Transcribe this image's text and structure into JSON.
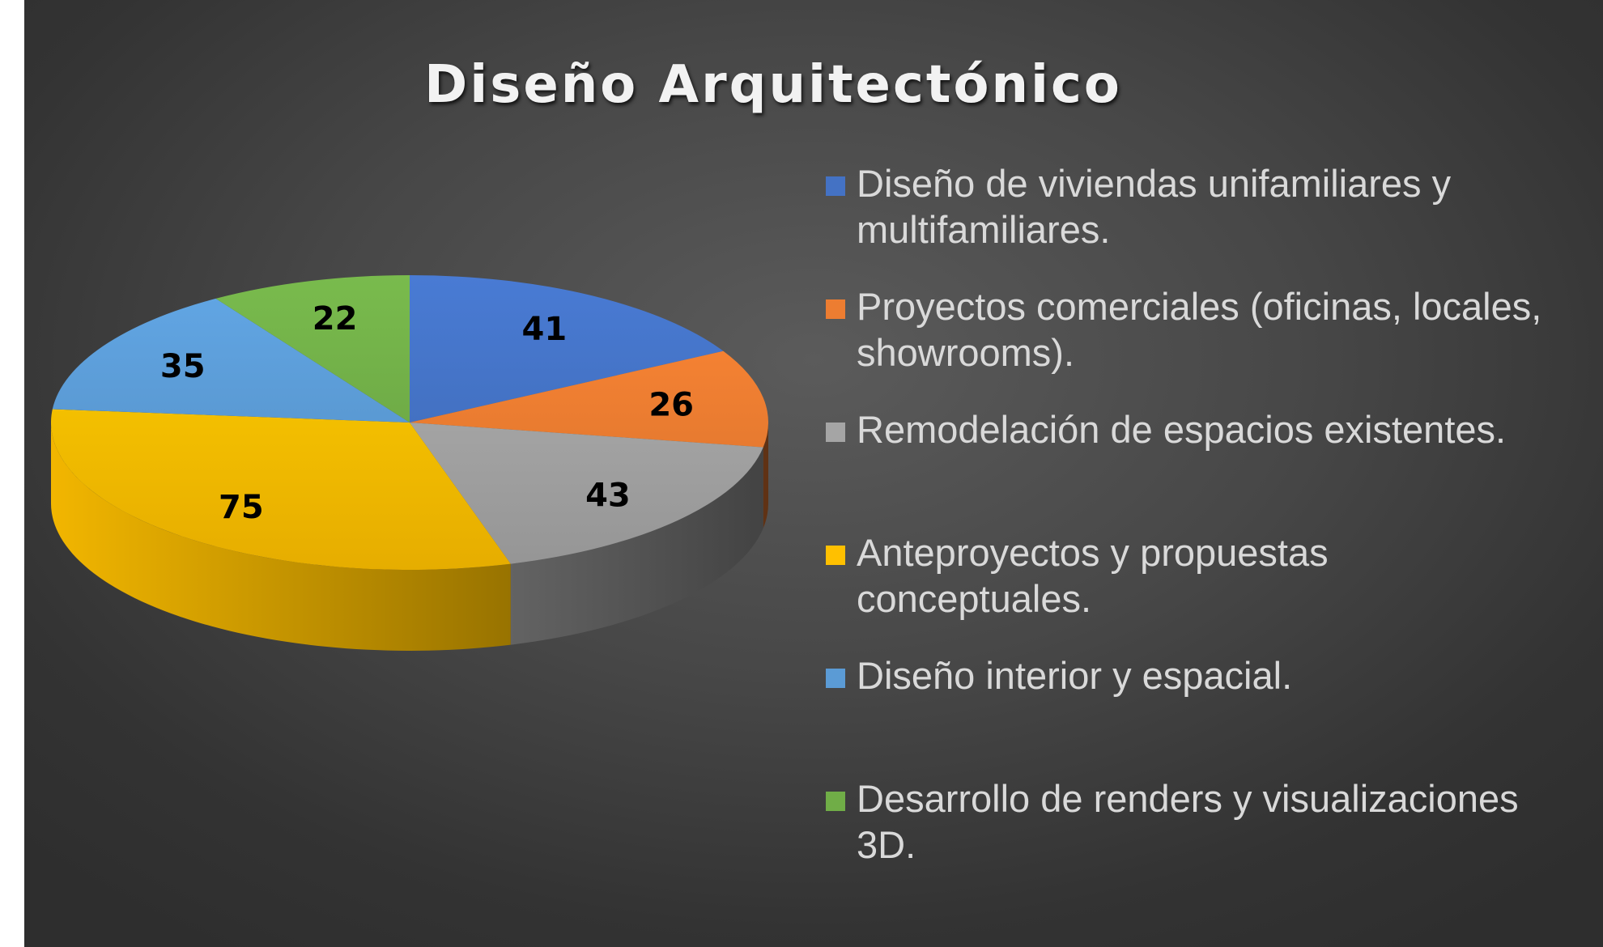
{
  "chart_data": {
    "type": "pie",
    "title": "Diseño Arquitectónico",
    "categories": [
      "Diseño de viviendas unifamiliares y multifamiliares.",
      "Proyectos comerciales (oficinas, locales, showrooms).",
      "Remodelación de espacios existentes.",
      "Anteproyectos y propuestas conceptuales.",
      "Diseño interior y espacial.",
      "Desarrollo de renders y visualizaciones 3D."
    ],
    "values": [
      41,
      26,
      43,
      75,
      35,
      22
    ],
    "colors": [
      "#4472C4",
      "#ED7D31",
      "#A5A5A5",
      "#FFC000",
      "#5B9BD5",
      "#70AD47"
    ],
    "legend_position": "right",
    "style": "3d-pie"
  }
}
